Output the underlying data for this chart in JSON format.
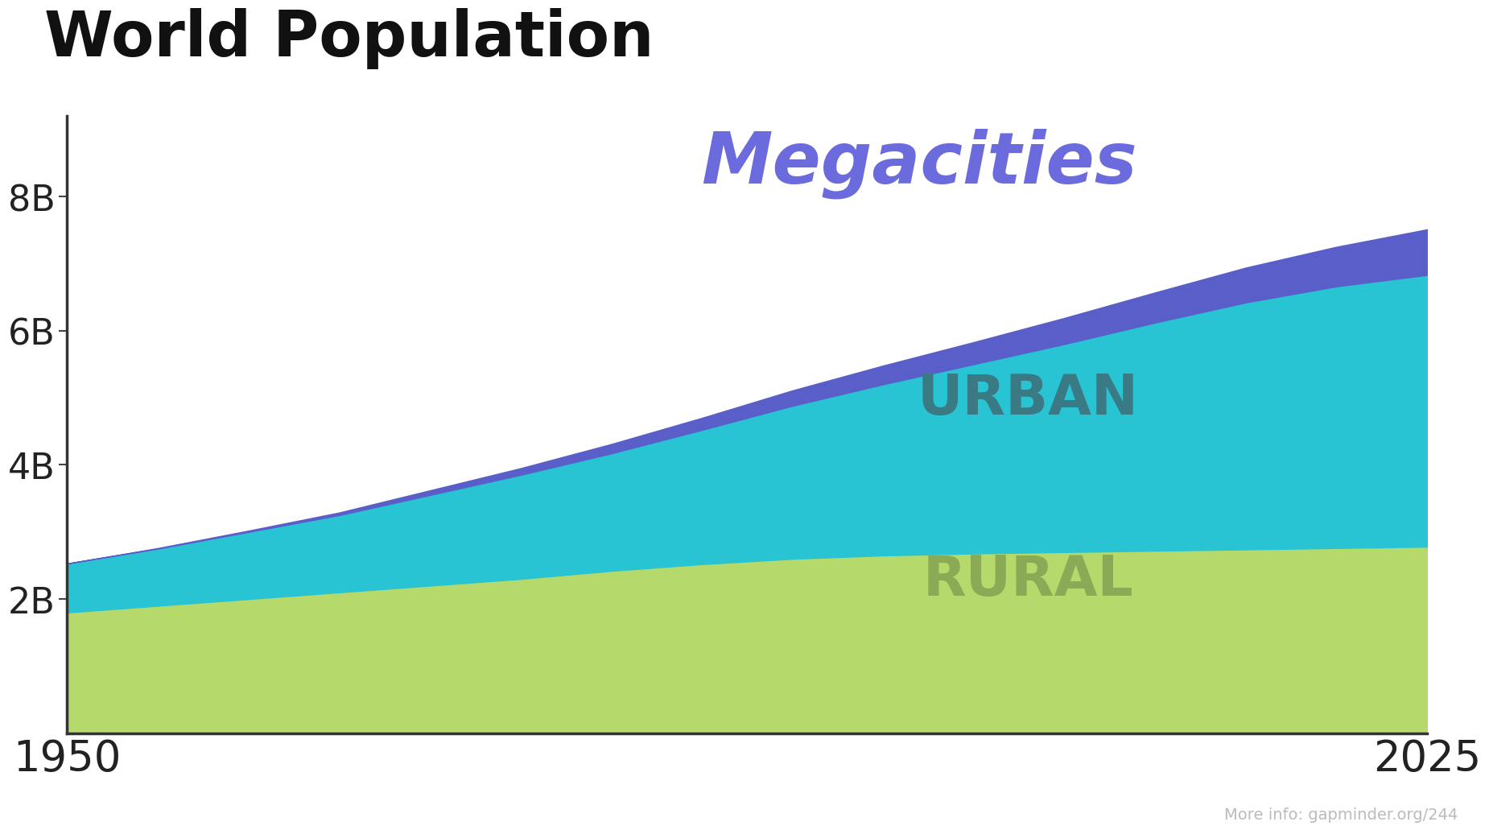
{
  "title": "World Population",
  "years": [
    1950,
    1955,
    1960,
    1965,
    1970,
    1975,
    1980,
    1985,
    1990,
    1995,
    2000,
    2005,
    2010,
    2015,
    2020,
    2025
  ],
  "rural": [
    1.8,
    1.9,
    2.0,
    2.1,
    2.2,
    2.3,
    2.42,
    2.52,
    2.6,
    2.65,
    2.68,
    2.7,
    2.72,
    2.74,
    2.76,
    2.78
  ],
  "urban": [
    0.73,
    0.85,
    1.0,
    1.15,
    1.35,
    1.55,
    1.75,
    2.0,
    2.28,
    2.55,
    2.82,
    3.1,
    3.4,
    3.68,
    3.9,
    4.05
  ],
  "megacities": [
    0.0,
    0.01,
    0.02,
    0.04,
    0.07,
    0.1,
    0.14,
    0.18,
    0.23,
    0.28,
    0.33,
    0.39,
    0.45,
    0.52,
    0.59,
    0.68
  ],
  "color_rural": "#b5d96b",
  "color_urban": "#29c4d4",
  "color_megacities": "#5a5ec8",
  "color_label_megacities": "#6b6bdd",
  "color_label_urban": "#3a7a85",
  "color_label_rural": "#8aaa55",
  "label_megacities": "Megacities",
  "label_urban": "URBAN",
  "label_rural": "RURAL",
  "footer": "More info: gapminder.org/244",
  "xmin": 1950,
  "xmax": 2025,
  "ymin": 0,
  "ymax": 9.2,
  "yticks": [
    2,
    4,
    6,
    8
  ],
  "ytick_labels": [
    "2B",
    "4B",
    "6B",
    "8B"
  ],
  "xtick_values": [
    1950,
    2025
  ],
  "xtick_labels": [
    "1950",
    "2025"
  ],
  "background_color": "#ffffff"
}
